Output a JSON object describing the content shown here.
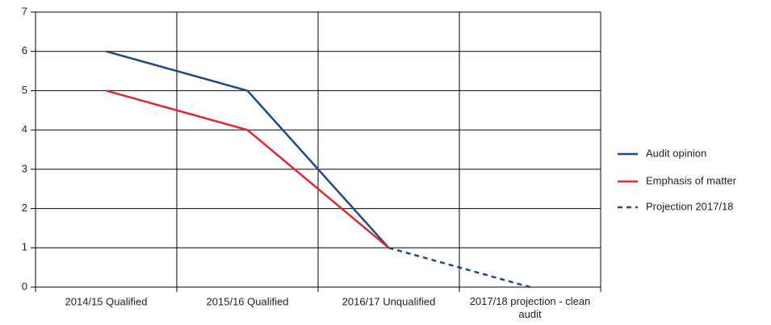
{
  "chart_data": {
    "type": "line",
    "categories": [
      "2014/15 Qualified",
      "2015/16 Qualified",
      "2016/17 Unqualified",
      "2017/18 projection - clean audit"
    ],
    "series": [
      {
        "name": "Audit opinion",
        "color": "#1b4a87",
        "dashed": false,
        "values": [
          6,
          5,
          1,
          null
        ]
      },
      {
        "name": "Emphasis of matter",
        "color": "#e3262d",
        "dashed": false,
        "values": [
          5,
          4,
          1,
          null
        ]
      },
      {
        "name": "Projection 2017/18",
        "color": "#1b4a87",
        "dashed": true,
        "values": [
          null,
          null,
          1,
          0
        ]
      }
    ],
    "ylim": [
      0,
      7
    ],
    "yticks": [
      0,
      1,
      2,
      3,
      4,
      5,
      6,
      7
    ],
    "grid": true,
    "legend": "right"
  }
}
